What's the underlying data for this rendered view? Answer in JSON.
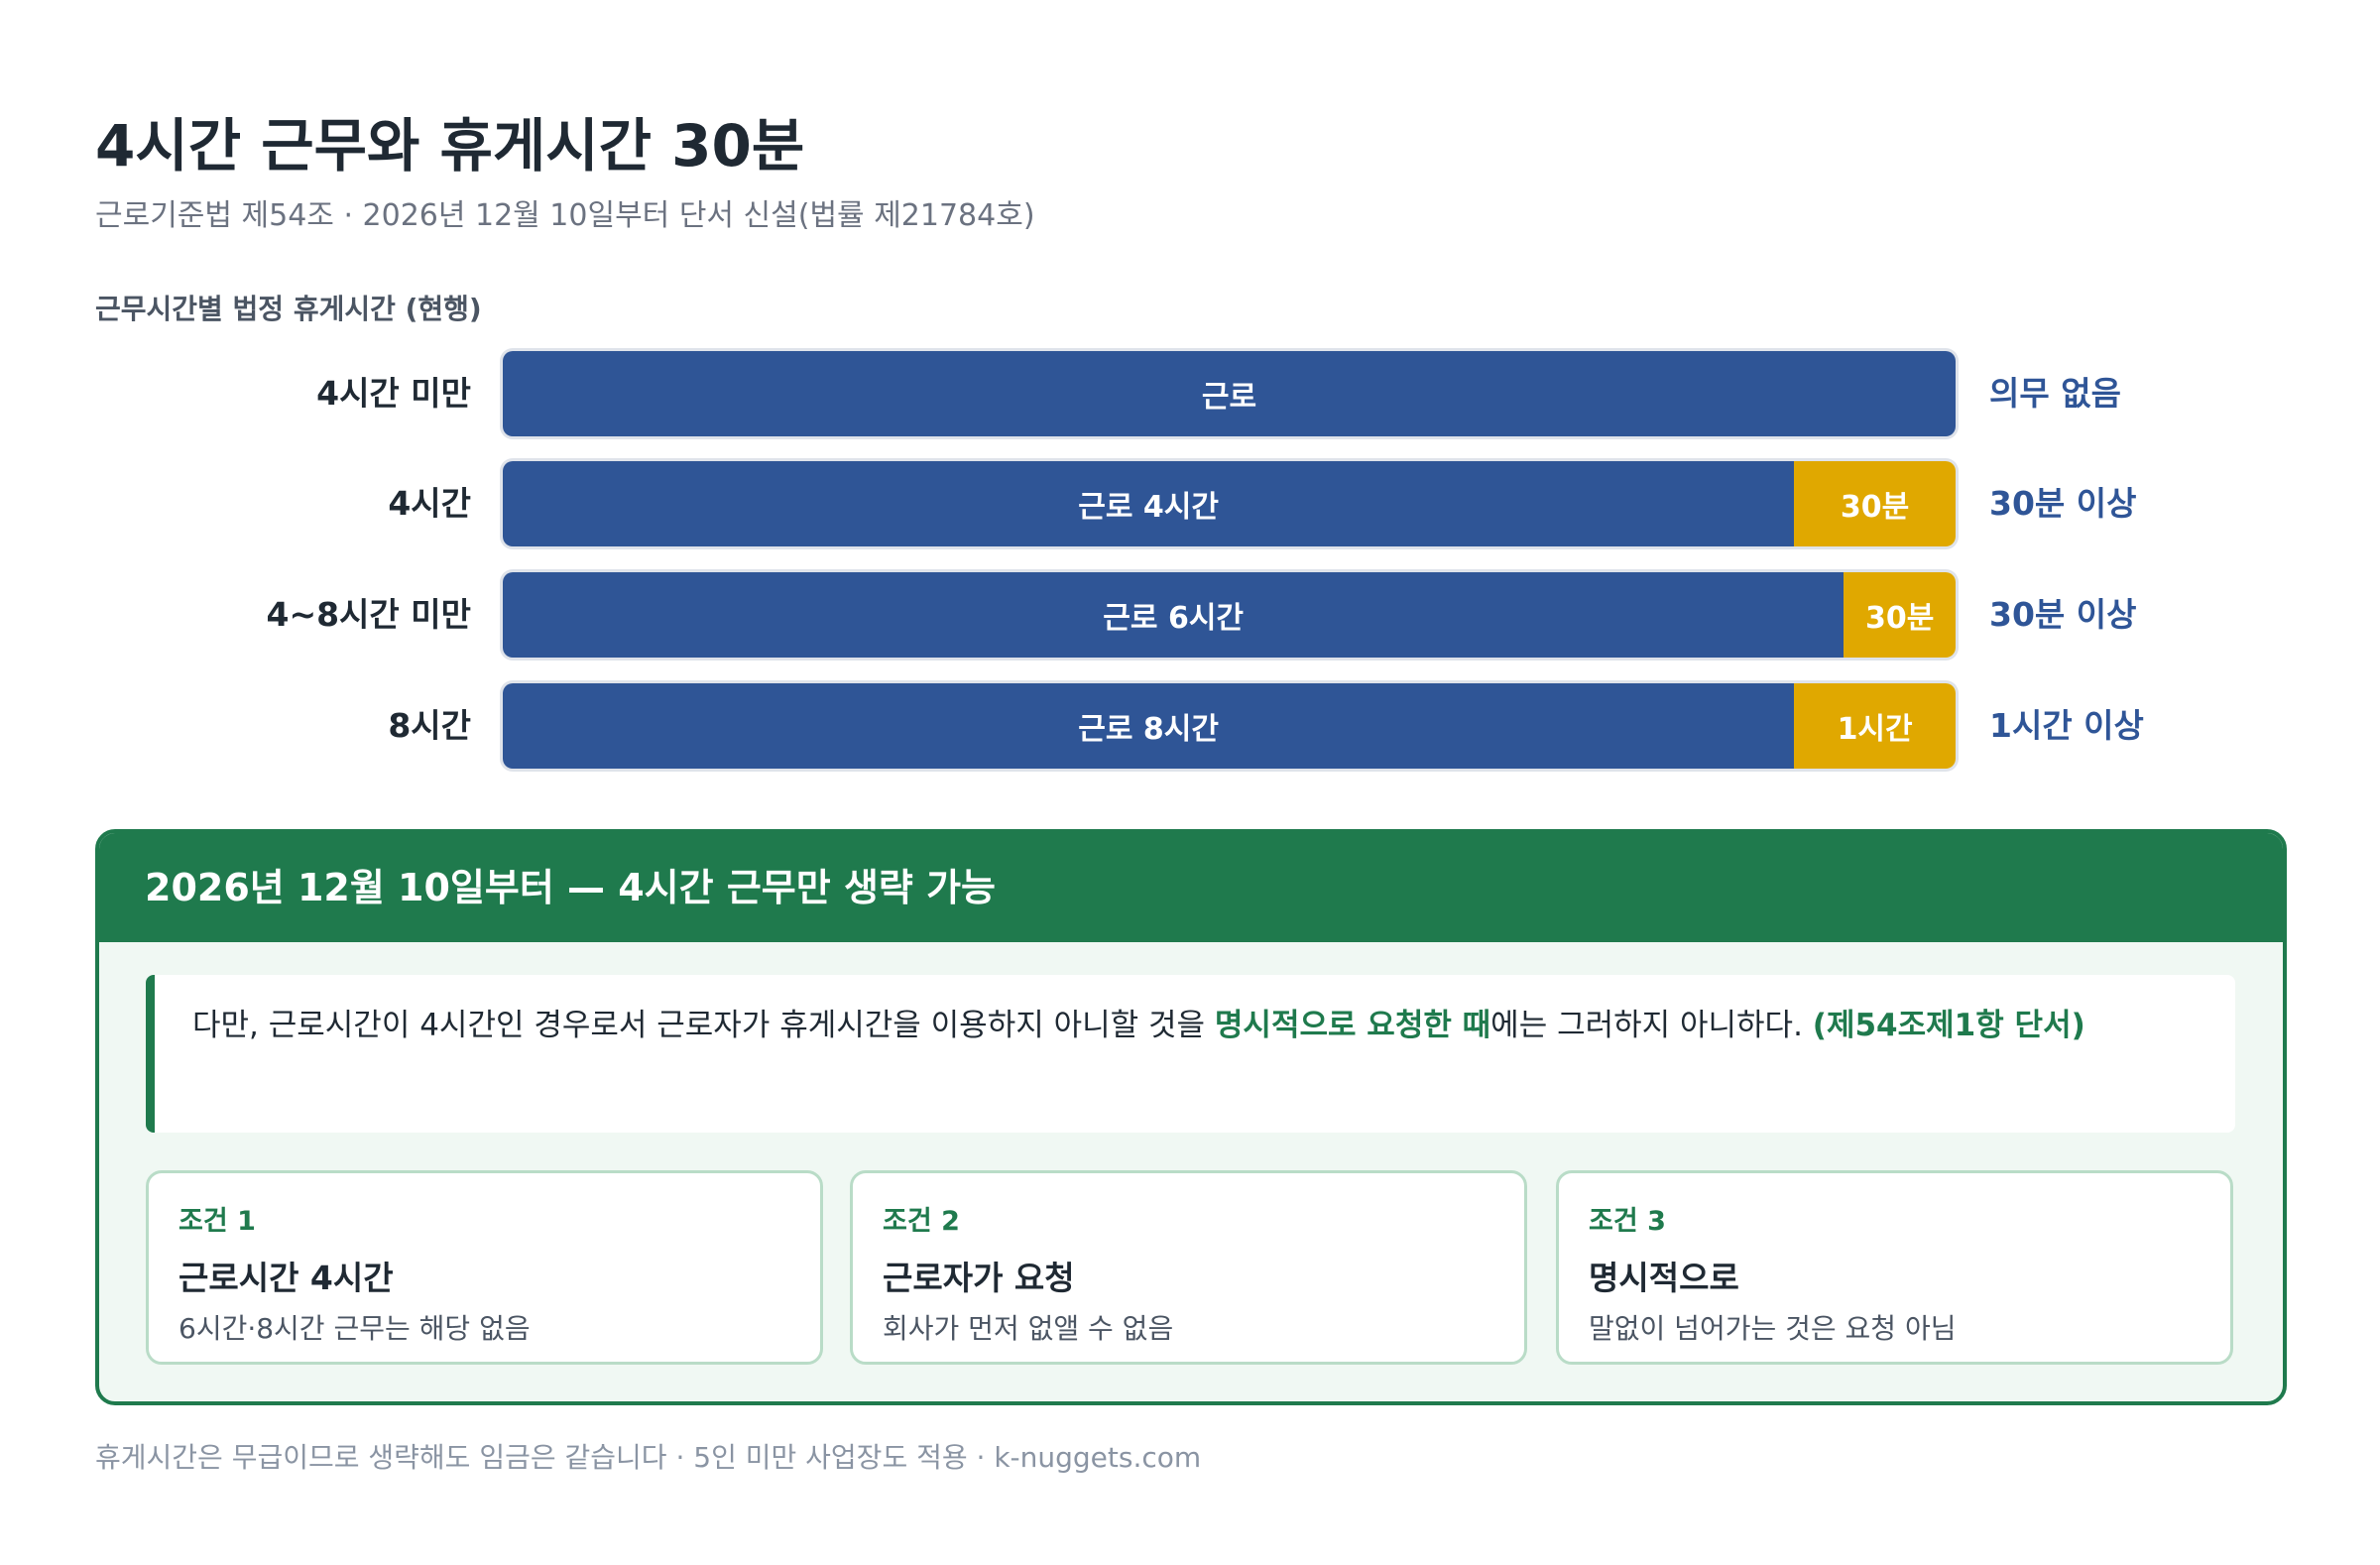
{
  "header": {
    "title": "4시간 근무와 휴게시간 30분",
    "subtitle": "근로기준법 제54조 · 2026년 12월 10일부터 단서 신설(법률 제21784호)"
  },
  "section_label": "근무시간별 법정 휴게시간 (현행)",
  "rows": [
    {
      "label": "4시간 미만",
      "segments": [
        {
          "label": "근로",
          "kind": "work"
        }
      ],
      "note": "의무 없음"
    },
    {
      "label": "4시간",
      "segments": [
        {
          "label": "근로 4시간",
          "kind": "work",
          "hours": 4
        },
        {
          "label": "30분",
          "kind": "break",
          "hours": 0.5
        }
      ],
      "note": "30분 이상"
    },
    {
      "label": "4~8시간 미만",
      "segments": [
        {
          "label": "근로 6시간",
          "kind": "work",
          "hours": 6
        },
        {
          "label": "30분",
          "kind": "break",
          "hours": 0.5
        }
      ],
      "note": "30분 이상"
    },
    {
      "label": "8시간",
      "segments": [
        {
          "label": "근로 8시간",
          "kind": "work",
          "hours": 8
        },
        {
          "label": "1시간",
          "kind": "break",
          "hours": 1
        }
      ],
      "note": "1시간 이상"
    }
  ],
  "panel": {
    "title": "2026년 12월 10일부터 — 4시간 근무만 생략 가능",
    "quote": [
      {
        "text": "다만, 근로시간이 4시간인 경우로서 근로자가 휴게시간을 이용하지 아니할 것을 ",
        "strong": false
      },
      {
        "text": "명시적으로 요청한 때",
        "strong": true
      },
      {
        "text": "에는 그러하지 아니하다. ",
        "strong": false
      },
      {
        "text": "(제54조제1항 단서)",
        "strong": true
      }
    ],
    "cards": [
      {
        "tag": "조건 1",
        "title": "근로시간 4시간",
        "desc": "6시간·8시간 근무는 해당 없음"
      },
      {
        "tag": "조건 2",
        "title": "근로자가 요청",
        "desc": "회사가 먼저 없앨 수 없음"
      },
      {
        "tag": "조건 3",
        "title": "명시적으로",
        "desc": "말없이 넘어가는 것은 요청 아님"
      }
    ]
  },
  "footer": "휴게시간은 무급이므로 생략해도 임금은 같습니다 · 5인 미만 사업장도 적용 · k-nuggets.com"
}
